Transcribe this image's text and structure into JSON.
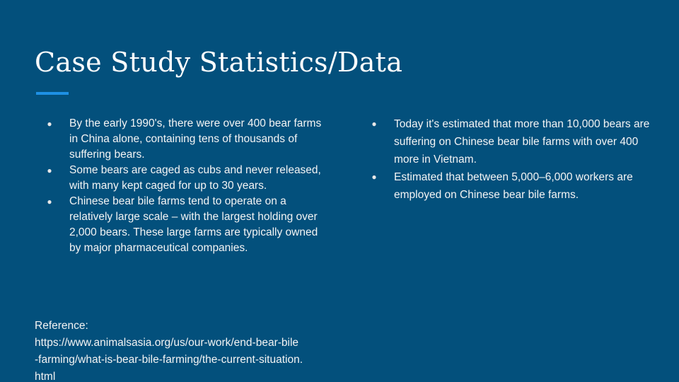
{
  "slide": {
    "title": "Case Study Statistics/Data",
    "left_bullets": [
      "By the early 1990's, there were over 400 bear farms in China alone, containing tens of thousands of suffering bears.",
      "Some bears are caged as cubs and never released, with many kept caged for up to 30 years.",
      "Chinese bear bile farms tend to operate on a relatively large scale – with the largest holding over 2,000 bears. These large farms are typically owned by major pharmaceutical companies."
    ],
    "right_bullets": [
      "Today it's estimated that more than 10,000 bears are suffering on Chinese bear bile farms with over 400 more in Vietnam.",
      "Estimated that between 5,000–6,000 workers are employed on Chinese bear bile farms."
    ],
    "reference": {
      "label": "Reference:",
      "url_lines": [
        "https://www.animalsasia.org/us/our-work/end-bear-bile",
        "-farming/what-is-bear-bile-farming/the-current-situation.",
        "html"
      ]
    },
    "bullet_glyph": "●",
    "colors": {
      "background": "#03507c",
      "accent": "#1e90e4",
      "text": "#ffffff"
    }
  }
}
